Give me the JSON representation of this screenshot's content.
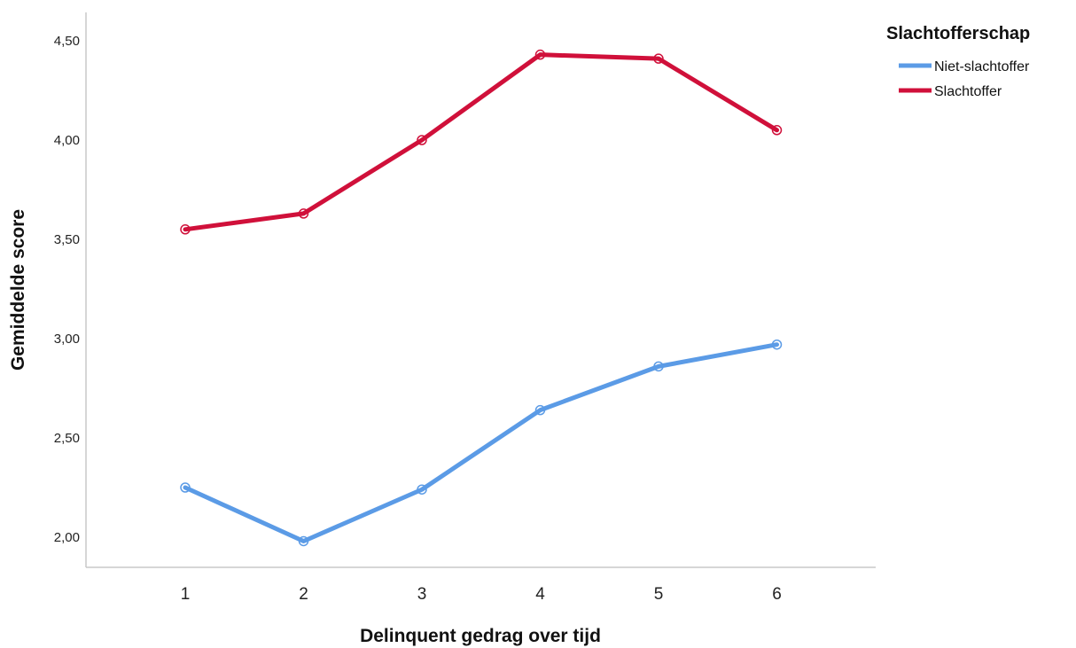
{
  "chart_data": {
    "type": "line",
    "title": "",
    "xlabel": "Delinquent gedrag over tijd",
    "ylabel": "Gemiddelde score",
    "categories": [
      "1",
      "2",
      "3",
      "4",
      "5",
      "6"
    ],
    "ylim": [
      1.85,
      4.65
    ],
    "yticks": [
      2.0,
      2.5,
      3.0,
      3.5,
      4.0,
      4.5
    ],
    "ytick_labels": [
      "2,00",
      "2,50",
      "3,00",
      "3,50",
      "4,00",
      "4,50"
    ],
    "grid": false,
    "legend": {
      "title": "Slachtofferschap",
      "position": "top-right"
    },
    "series": [
      {
        "name": "Niet-slachtoffer",
        "color": "#5b9be6",
        "values": [
          2.25,
          1.98,
          2.24,
          2.64,
          2.86,
          2.97
        ]
      },
      {
        "name": "Slachtoffer",
        "color": "#d0103a",
        "values": [
          3.55,
          3.63,
          4.0,
          4.43,
          4.41,
          4.05
        ]
      }
    ]
  }
}
